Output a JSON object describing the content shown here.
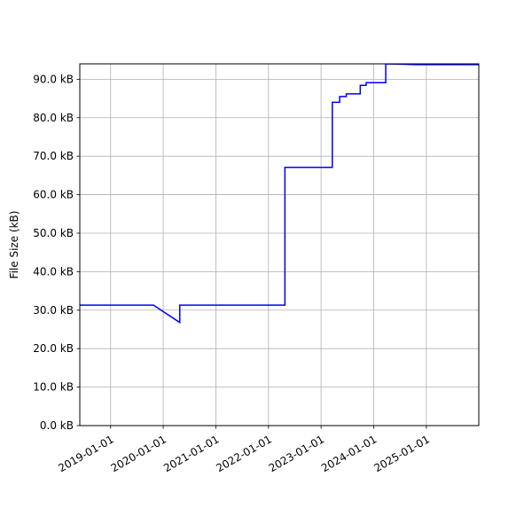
{
  "chart_data": {
    "type": "line",
    "title": "",
    "xlabel": "",
    "ylabel": "File Size (kB)",
    "grid": true,
    "line_color": "#0000ff",
    "xlim": [
      "2018-06-01",
      "2025-12-31"
    ],
    "ylim": [
      0,
      94
    ],
    "x_ticks": [
      {
        "value": "2019-01-01",
        "label": "2019-01-01"
      },
      {
        "value": "2020-01-01",
        "label": "2020-01-01"
      },
      {
        "value": "2021-01-01",
        "label": "2021-01-01"
      },
      {
        "value": "2022-01-01",
        "label": "2022-01-01"
      },
      {
        "value": "2023-01-01",
        "label": "2023-01-01"
      },
      {
        "value": "2024-01-01",
        "label": "2024-01-01"
      },
      {
        "value": "2025-01-01",
        "label": "2025-01-01"
      }
    ],
    "y_ticks": [
      {
        "value": 0,
        "label": "0.0 kB"
      },
      {
        "value": 10,
        "label": "10.0 kB"
      },
      {
        "value": 20,
        "label": "20.0 kB"
      },
      {
        "value": 30,
        "label": "30.0 kB"
      },
      {
        "value": 40,
        "label": "40.0 kB"
      },
      {
        "value": 50,
        "label": "50.0 kB"
      },
      {
        "value": 60,
        "label": "60.0 kB"
      },
      {
        "value": 70,
        "label": "70.0 kB"
      },
      {
        "value": 80,
        "label": "80.0 kB"
      },
      {
        "value": 90,
        "label": "90.0 kB"
      }
    ],
    "series": [
      {
        "points": [
          {
            "x": "2018-06-01",
            "y": 31.3
          },
          {
            "x": "2019-10-25",
            "y": 31.3
          },
          {
            "x": "2020-04-25",
            "y": 26.8
          },
          {
            "x": "2020-04-25",
            "y": 31.3
          },
          {
            "x": "2022-04-25",
            "y": 31.3
          },
          {
            "x": "2022-04-25",
            "y": 67.1
          },
          {
            "x": "2023-03-20",
            "y": 67.1
          },
          {
            "x": "2023-03-20",
            "y": 84.0
          },
          {
            "x": "2023-05-10",
            "y": 84.0
          },
          {
            "x": "2023-05-10",
            "y": 85.5
          },
          {
            "x": "2023-06-25",
            "y": 85.5
          },
          {
            "x": "2023-06-25",
            "y": 86.2
          },
          {
            "x": "2023-09-30",
            "y": 86.2
          },
          {
            "x": "2023-09-30",
            "y": 88.4
          },
          {
            "x": "2023-11-10",
            "y": 88.4
          },
          {
            "x": "2023-11-10",
            "y": 89.1
          },
          {
            "x": "2024-03-25",
            "y": 89.1
          },
          {
            "x": "2024-03-25",
            "y": 94.0
          },
          {
            "x": "2024-07-15",
            "y": 93.9
          },
          {
            "x": "2024-10-10",
            "y": 93.8
          },
          {
            "x": "2025-12-31",
            "y": 93.8
          }
        ]
      }
    ]
  }
}
